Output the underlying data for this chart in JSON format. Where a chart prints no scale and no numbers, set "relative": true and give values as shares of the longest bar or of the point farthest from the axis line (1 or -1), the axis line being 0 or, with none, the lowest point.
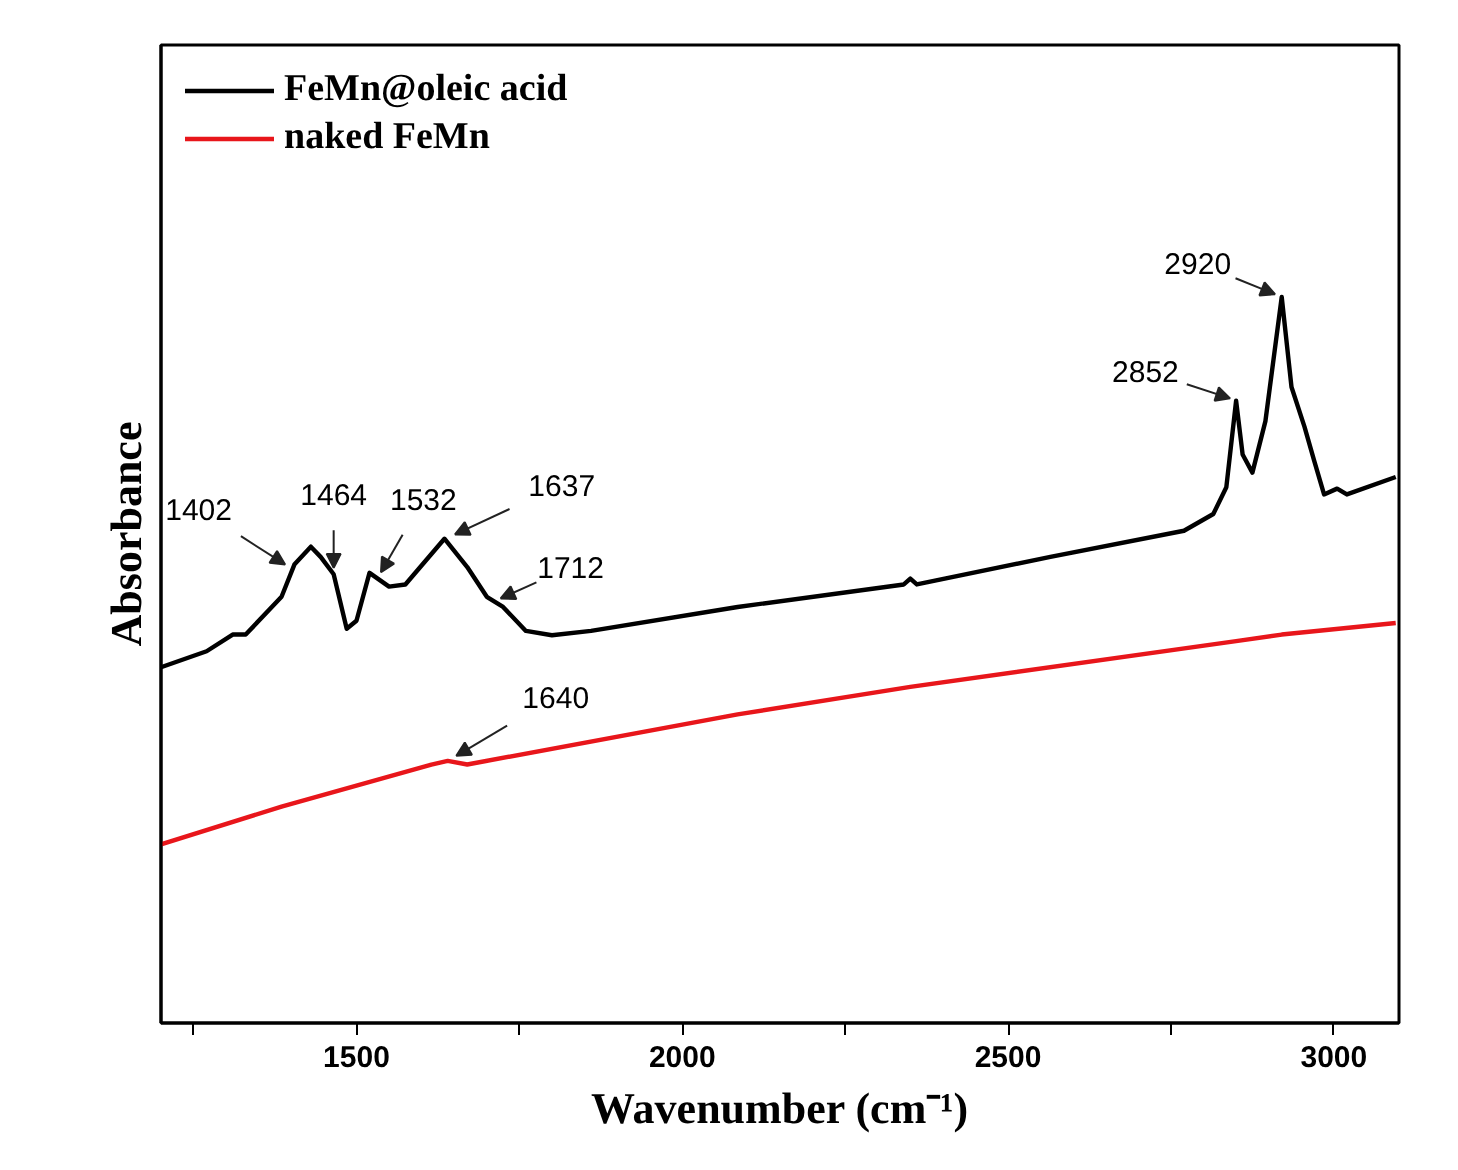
{
  "chart_data": {
    "type": "line",
    "relative": true,
    "xlabel": "Wavenumber (cm⁻¹)",
    "ylabel": "Absorbance",
    "xlim": [
      1200,
      3100
    ],
    "xticks": [
      {
        "value": 1250,
        "label": null
      },
      1500,
      {
        "value": 1750,
        "label": null
      },
      2000,
      {
        "value": 2250,
        "label": null
      },
      2500,
      {
        "value": 2750,
        "label": null
      },
      3000
    ],
    "grid": false,
    "legend": "top left",
    "line_style": "solid",
    "marker": "none",
    "tick_labels": "x",
    "series": [
      {
        "name": "FeMn@oleic acid",
        "color": "#000000",
        "x": [
          1200,
          1270,
          1310,
          1330,
          1385,
          1405,
          1430,
          1445,
          1465,
          1485,
          1500,
          1520,
          1550,
          1575,
          1635,
          1670,
          1700,
          1725,
          1760,
          1800,
          1860,
          2085,
          2340,
          2350,
          2360,
          2565,
          2770,
          2815,
          2835,
          2850,
          2860,
          2875,
          2895,
          2920,
          2935,
          2955,
          2970,
          2985,
          3005,
          3020,
          3095
        ],
        "values": [
          0.49,
          0.512,
          0.535,
          0.535,
          0.587,
          0.632,
          0.656,
          0.642,
          0.618,
          0.543,
          0.554,
          0.62,
          0.601,
          0.604,
          0.667,
          0.628,
          0.587,
          0.573,
          0.54,
          0.534,
          0.54,
          0.573,
          0.604,
          0.612,
          0.604,
          0.642,
          0.678,
          0.701,
          0.738,
          0.857,
          0.783,
          0.758,
          0.829,
          1,
          0.876,
          0.821,
          0.774,
          0.728,
          0.736,
          0.728,
          0.752
        ]
      },
      {
        "name": "naked FeMn",
        "color": "#e8161b",
        "x": [
          1200,
          1385,
          1615,
          1640,
          1670,
          2085,
          2350,
          2850,
          2920,
          3095
        ],
        "values": [
          0.246,
          0.298,
          0.356,
          0.361,
          0.356,
          0.425,
          0.463,
          0.526,
          0.535,
          0.551
        ]
      }
    ],
    "annotations": [
      {
        "text": "1402",
        "x": 1402,
        "y": 0.625
      },
      {
        "text": "1464",
        "x": 1465,
        "y": 0.618
      },
      {
        "text": "1532",
        "x": 1532,
        "y": 0.612
      },
      {
        "text": "1637",
        "x": 1637,
        "y": 0.667
      },
      {
        "text": "1712",
        "x": 1712,
        "y": 0.581
      },
      {
        "text": "1640",
        "x": 1640,
        "y": 0.361
      },
      {
        "text": "2852",
        "x": 2852,
        "y": 0.857
      },
      {
        "text": "2920",
        "x": 2920,
        "y": 1
      }
    ]
  }
}
